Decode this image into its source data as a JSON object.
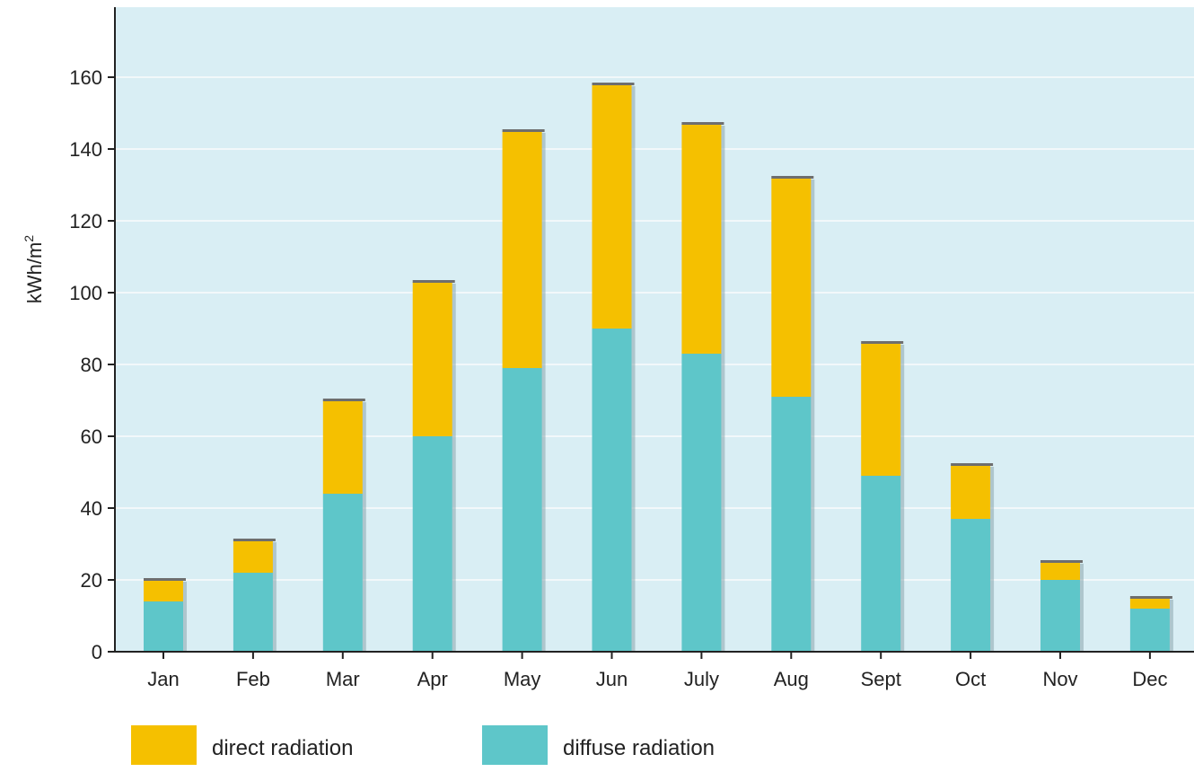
{
  "chart_data": {
    "type": "bar",
    "stacked": true,
    "title": "",
    "xlabel": "",
    "ylabel": "kWh/m",
    "ylabel_superscript": "2",
    "ylim": [
      0,
      175
    ],
    "yticks": [
      0,
      20,
      40,
      60,
      80,
      100,
      120,
      140,
      160
    ],
    "grid": true,
    "legend_position": "bottom",
    "categories": [
      "Jan",
      "Feb",
      "Mar",
      "Apr",
      "May",
      "Jun",
      "July",
      "Aug",
      "Sept",
      "Oct",
      "Nov",
      "Dec"
    ],
    "series": [
      {
        "name": "diffuse radiation",
        "color": "#5ec6c9",
        "values": [
          14,
          22,
          44,
          60,
          79,
          90,
          83,
          71,
          49,
          37,
          20,
          12
        ]
      },
      {
        "name": "direct radiation",
        "color": "#f5c000",
        "values": [
          6,
          9,
          26,
          43,
          66,
          68,
          64,
          61,
          37,
          15,
          5,
          3
        ]
      }
    ],
    "legend": [
      {
        "label": "direct radiation",
        "color": "#f5c000"
      },
      {
        "label": "diffuse radiation",
        "color": "#5ec6c9"
      }
    ],
    "colors": {
      "plot_background": "#d9eef4",
      "gridline": "#f2f8fa",
      "axis": "#222222",
      "text": "#222222"
    }
  }
}
